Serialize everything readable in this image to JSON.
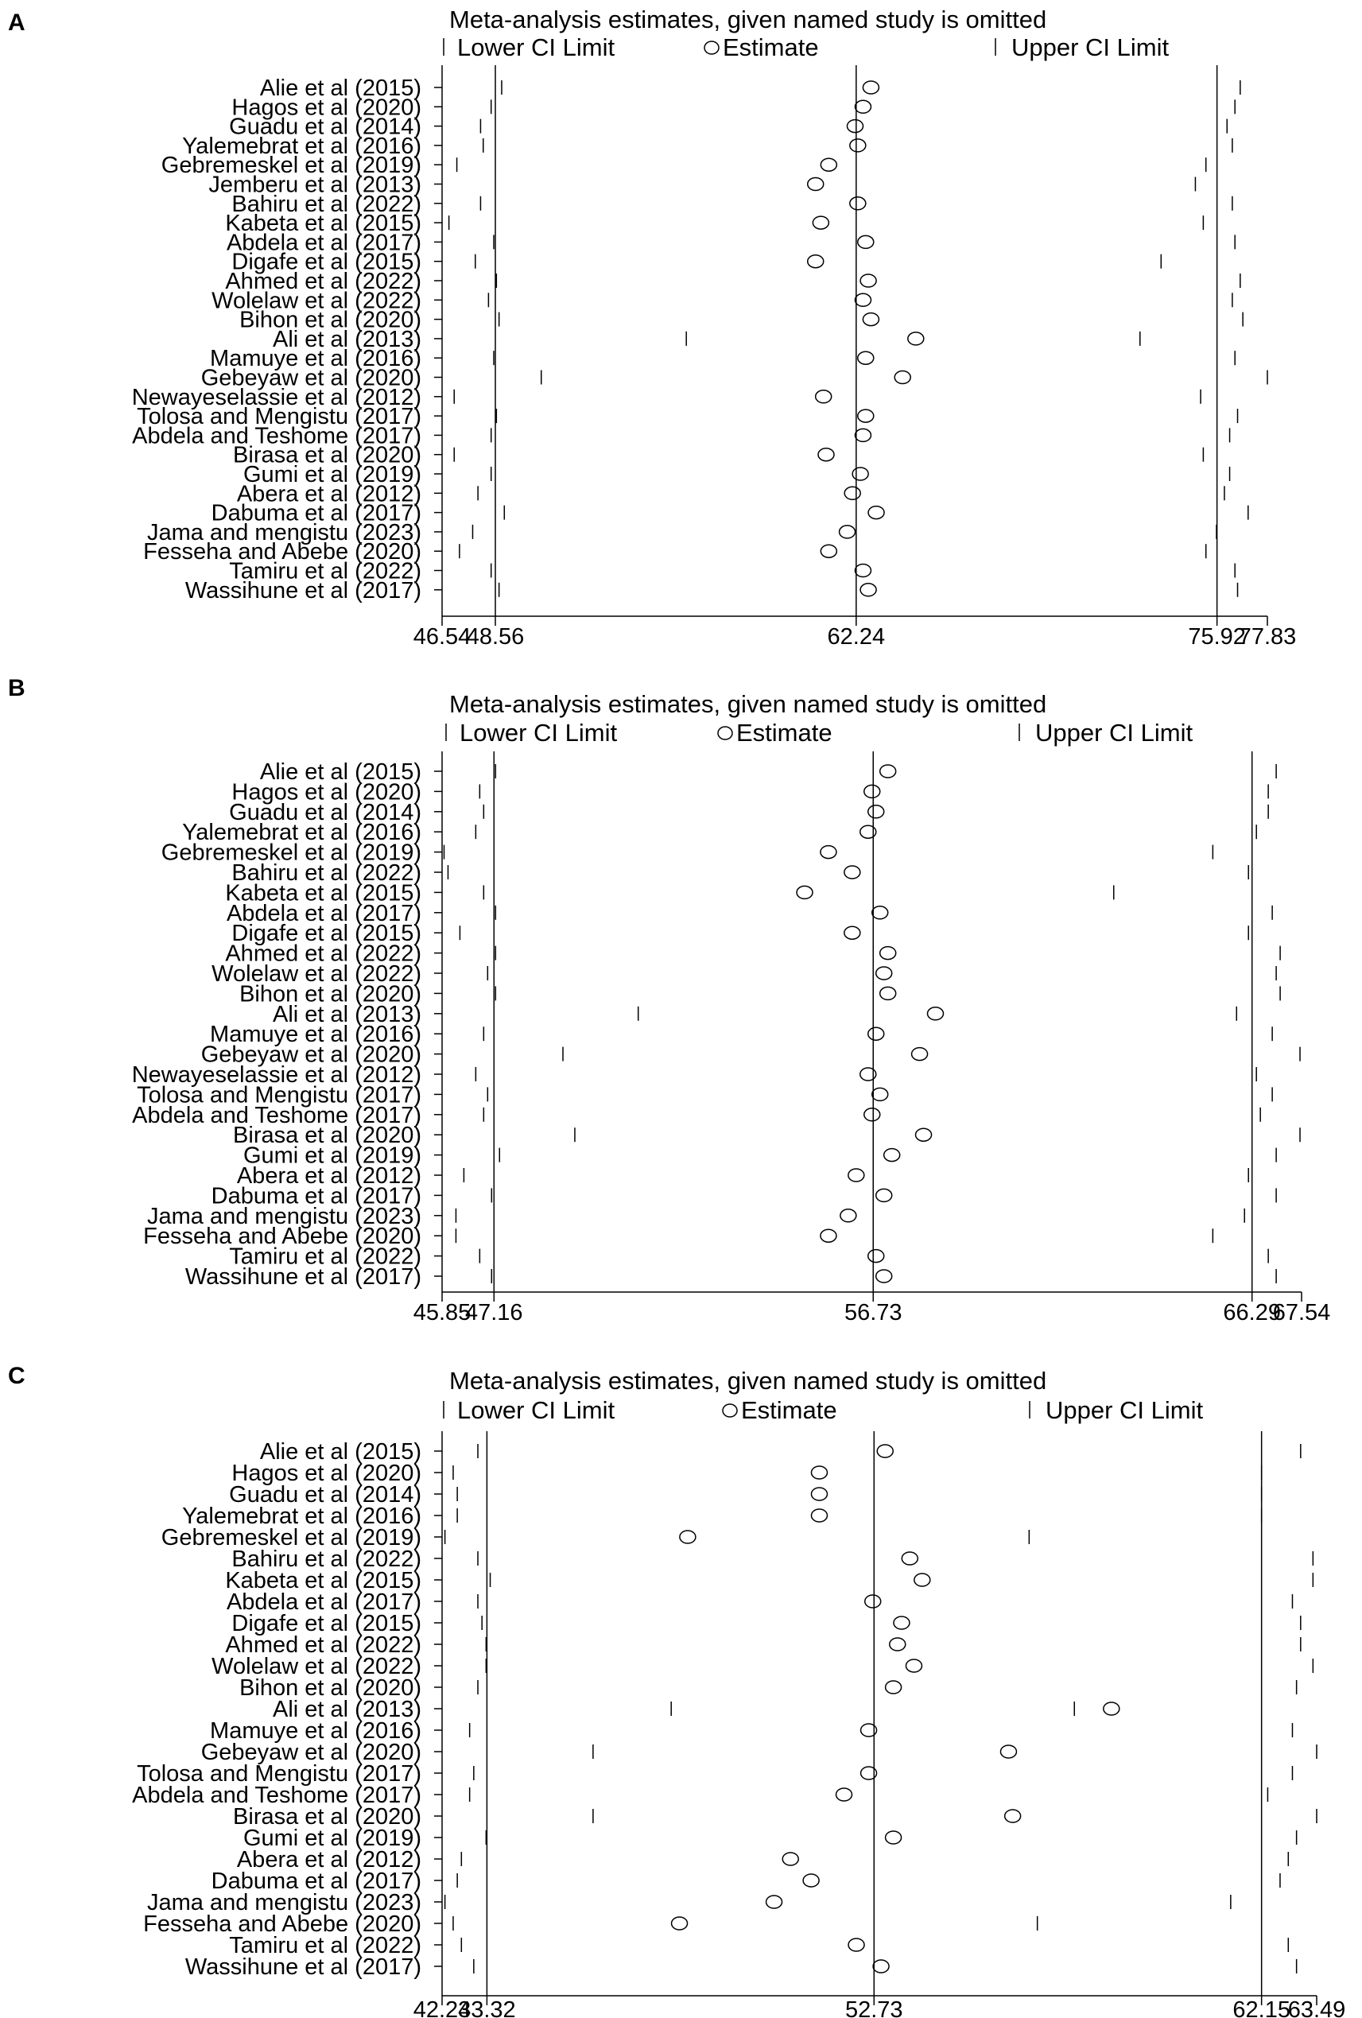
{
  "figure_title": "Meta-analysis estimates, given named study is omitted",
  "colors": {
    "ink": "#000000",
    "background": "#ffffff"
  },
  "legend": {
    "lower": "Lower CI Limit",
    "estimate": "Estimate",
    "upper": "Upper CI Limit"
  },
  "chart_data": [
    {
      "panel": "A",
      "type": "scatter",
      "title": "Meta-analysis estimates, given named study is omitted",
      "xlim": [
        46.54,
        77.83
      ],
      "xticks": [
        46.54,
        48.56,
        62.24,
        75.92,
        77.83
      ],
      "xtick_labels": [
        "46.54",
        "48.56",
        "62.24",
        "75.92",
        "77.83"
      ],
      "reference_lines": [
        48.56,
        62.24,
        75.92
      ],
      "studies": [
        "Alie et al (2015)",
        "Hagos et al (2020)",
        "Guadu et al (2014)",
        "Yalemebrat et al (2016)",
        "Gebremeskel et al (2019)",
        "Jemberu et al (2013)",
        "Bahiru et al (2022)",
        "Kabeta et al (2015)",
        "Abdela et al (2017)",
        "Digafe et al (2015)",
        "Ahmed et al (2022)",
        "Wolelaw et al (2022)",
        "Bihon et al (2020)",
        "Ali et al (2013)",
        "Mamuye et al (2016)",
        "Gebeyaw et al (2020)",
        "Newayeselassie et al (2012)",
        "Tolosa and Mengistu (2017)",
        "Abdela and Teshome  (2017)",
        "Birasa et al (2020)",
        "Gumi et al (2019)",
        "Abera et al  (2012)",
        "Dabuma et al (2017)",
        "Jama and mengistu (2023)",
        "Fesseha and Abebe (2020)",
        "Tamiru et al (2022)",
        "Wassihune et al (2017)"
      ],
      "lower": [
        48.8,
        48.4,
        48.0,
        48.1,
        47.1,
        null,
        48.0,
        46.8,
        48.5,
        47.8,
        48.6,
        48.3,
        48.7,
        55.8,
        48.5,
        50.3,
        47.0,
        48.6,
        48.4,
        47.0,
        48.4,
        47.9,
        48.9,
        47.7,
        47.2,
        48.4,
        48.7
      ],
      "estimate": [
        62.8,
        62.5,
        62.2,
        62.3,
        61.2,
        60.7,
        62.3,
        60.9,
        62.6,
        60.7,
        62.7,
        62.5,
        62.8,
        64.5,
        62.6,
        64.0,
        61.0,
        62.6,
        62.5,
        61.1,
        62.4,
        62.1,
        63.0,
        61.9,
        61.2,
        62.5,
        62.7
      ],
      "upper": [
        76.8,
        76.6,
        76.3,
        76.5,
        75.5,
        75.1,
        76.5,
        75.4,
        76.6,
        73.8,
        76.8,
        76.5,
        76.9,
        73.0,
        76.6,
        77.83,
        75.3,
        76.7,
        76.4,
        75.4,
        76.4,
        76.2,
        77.1,
        75.9,
        75.5,
        76.6,
        76.7
      ]
    },
    {
      "panel": "B",
      "type": "scatter",
      "title": "Meta-analysis estimates, given named study is omitted",
      "xlim": [
        45.85,
        67.54
      ],
      "xticks": [
        45.85,
        47.16,
        56.73,
        66.29,
        67.54
      ],
      "xtick_labels": [
        "45.85",
        "47.16",
        "56.73",
        "66.29",
        "67.54"
      ],
      "reference_lines": [
        47.16,
        56.73,
        66.29
      ],
      "studies": [
        "Alie et al (2015)",
        "Hagos et al (2020)",
        "Guadu et al (2014)",
        "Yalemebrat et al (2016)",
        "Gebremeskel et al (2019)",
        "Bahiru et al (2022)",
        "Kabeta et al (2015)",
        "Abdela et al (2017)",
        "Digafe et al (2015)",
        "Ahmed et al (2022)",
        "Wolelaw et al (2022)",
        "Bihon et al (2020)",
        "Ali et al (2013)",
        "Mamuye et al (2016)",
        "Gebeyaw et al (2020)",
        "Newayeselassie et al (2012)",
        "Tolosa and Mengistu (2017)",
        "Abdela and Teshome  (2017)",
        "Birasa et al (2020)",
        "Gumi et al (2019)",
        "Abera et al  (2012)",
        "Dabuma et al (2017)",
        "Jama and mengistu (2023)",
        "Fesseha and Abebe (2020)",
        "Tamiru et al (2022)",
        "Wassihune et al (2017)"
      ],
      "lower": [
        47.2,
        46.8,
        46.9,
        46.7,
        45.9,
        46.0,
        46.9,
        47.2,
        46.3,
        47.2,
        47.0,
        47.2,
        50.8,
        46.9,
        48.9,
        46.7,
        47.0,
        46.9,
        49.2,
        47.3,
        46.4,
        47.1,
        46.2,
        46.2,
        46.8,
        47.1
      ],
      "estimate": [
        57.1,
        56.7,
        56.8,
        56.6,
        55.6,
        56.2,
        55.0,
        56.9,
        56.2,
        57.1,
        57.0,
        57.1,
        58.3,
        56.8,
        57.9,
        56.6,
        56.9,
        56.7,
        58.0,
        57.2,
        56.3,
        57.0,
        56.1,
        55.6,
        56.8,
        57.0
      ],
      "upper": [
        66.9,
        66.7,
        66.7,
        66.4,
        65.3,
        66.2,
        62.8,
        66.8,
        66.2,
        67.0,
        66.9,
        67.0,
        65.9,
        66.8,
        67.5,
        66.4,
        66.8,
        66.5,
        67.5,
        66.9,
        66.2,
        66.9,
        66.1,
        65.3,
        66.7,
        66.9
      ]
    },
    {
      "panel": "C",
      "type": "scatter",
      "title": "Meta-analysis estimates, given named study is omitted",
      "xlim": [
        42.23,
        63.49
      ],
      "xticks": [
        42.23,
        43.32,
        52.73,
        62.15,
        63.49
      ],
      "xtick_labels": [
        "42.23",
        "43.32",
        "52.73",
        "62.15",
        "63.49"
      ],
      "reference_lines": [
        43.32,
        52.73,
        62.15
      ],
      "studies": [
        "Alie et al (2015)",
        "Hagos et al (2020)",
        "Guadu et al (2014)",
        "Yalemebrat et al (2016)",
        "Gebremeskel et al (2019)",
        "Bahiru et al (2022)",
        "Kabeta et al (2015)",
        "Abdela et al (2017)",
        "Digafe et al (2015)",
        "Ahmed et al (2022)",
        "Wolelaw et al (2022)",
        "Bihon et al (2020)",
        "Ali et al (2013)",
        "Mamuye et al (2016)",
        "Gebeyaw et al (2020)",
        "Tolosa and Mengistu (2017)",
        "Abdela and Teshome  (2017)",
        "Birasa et al (2020)",
        "Gumi et al (2019)",
        "Abera et al  (2012)",
        "Dabuma et al (2017)",
        "Jama and mengistu (2023)",
        "Fesseha and Abebe (2020)",
        "Tamiru et al (2022)",
        "Wassihune et al (2017)"
      ],
      "lower": [
        43.1,
        42.5,
        42.6,
        42.6,
        42.3,
        43.1,
        43.4,
        43.1,
        43.2,
        43.3,
        43.3,
        43.1,
        47.8,
        42.9,
        45.9,
        43.0,
        42.9,
        45.9,
        43.3,
        42.7,
        42.6,
        42.3,
        42.5,
        42.7,
        43.0
      ],
      "estimate": [
        53.0,
        51.4,
        51.4,
        51.4,
        48.2,
        53.6,
        53.9,
        52.7,
        53.4,
        53.3,
        53.7,
        53.2,
        58.5,
        52.6,
        56.0,
        52.6,
        52.0,
        56.1,
        53.2,
        50.7,
        51.2,
        50.3,
        48.0,
        52.3,
        52.9
      ],
      "upper": [
        63.1,
        62.15,
        62.15,
        62.15,
        56.5,
        63.4,
        63.4,
        62.9,
        63.1,
        63.1,
        63.4,
        63.0,
        57.6,
        62.9,
        63.49,
        62.9,
        62.3,
        63.49,
        63.0,
        62.8,
        62.6,
        61.4,
        56.7,
        62.8,
        63.0
      ]
    }
  ]
}
